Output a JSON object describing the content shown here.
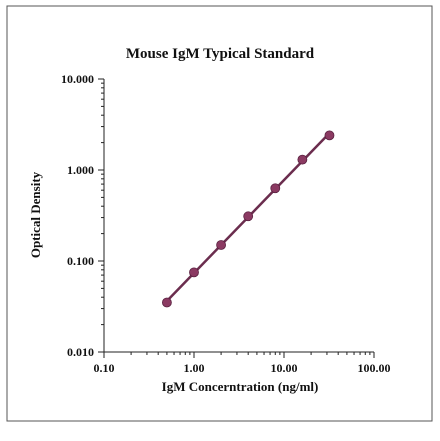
{
  "chart_data": {
    "type": "scatter",
    "title": "Mouse IgM Typical Standard",
    "xlabel": "IgM Concerntration (ng/ml)",
    "ylabel": "Optical Density",
    "xscale": "log",
    "yscale": "log",
    "xlim": [
      0.1,
      100
    ],
    "ylim": [
      0.01,
      10
    ],
    "x_ticks": [
      0.1,
      1,
      10,
      100
    ],
    "x_tick_labels": [
      "0.10",
      "1.00",
      "10.00",
      "100.00"
    ],
    "y_ticks": [
      0.01,
      0.1,
      1,
      10
    ],
    "y_tick_labels": [
      "0.010",
      "0.100",
      "1.000",
      "10.000"
    ],
    "grid": false,
    "legend": "none",
    "series": [
      {
        "x": [
          0.5,
          1,
          2,
          4,
          8,
          16,
          32
        ],
        "y": [
          0.035,
          0.075,
          0.15,
          0.31,
          0.63,
          1.3,
          2.4
        ],
        "marker_color": "#8b3a62",
        "trendline": {
          "type": "power",
          "color": "#6b2d4e"
        }
      }
    ]
  },
  "colors": {
    "frame": "#555555",
    "axis": "#222222",
    "marker": "#8b3a62",
    "fit_line": "#6b2d4e"
  }
}
